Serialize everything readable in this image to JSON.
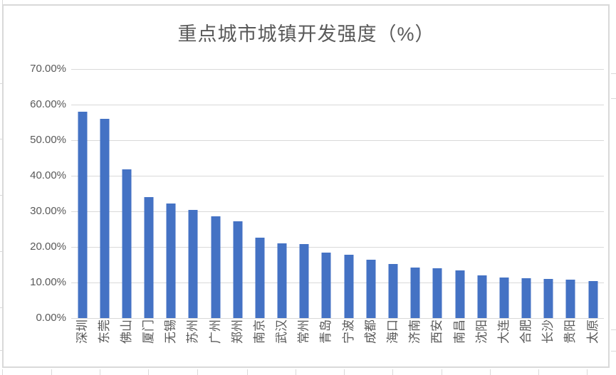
{
  "chart_data": {
    "type": "bar",
    "title": "重点城市城镇开发强度（%）",
    "categories": [
      "深圳",
      "东莞",
      "佛山",
      "厦门",
      "无锡",
      "苏州",
      "广州",
      "郑州",
      "南京",
      "武汉",
      "常州",
      "青岛",
      "宁波",
      "成都",
      "海口",
      "济南",
      "西安",
      "南昌",
      "沈阳",
      "大连",
      "合肥",
      "长沙",
      "贵阳",
      "太原"
    ],
    "values": [
      58.1,
      56.1,
      41.9,
      34.1,
      32.2,
      30.5,
      28.7,
      27.3,
      22.7,
      21.0,
      20.9,
      18.5,
      17.8,
      16.5,
      15.3,
      14.2,
      14.1,
      13.5,
      12.1,
      11.4,
      11.3,
      11.0,
      10.9,
      10.4
    ],
    "y_tick_labels": [
      "70.00%",
      "60.00%",
      "50.00%",
      "40.00%",
      "30.00%",
      "20.00%",
      "10.00%",
      "0.00%"
    ],
    "ylim": [
      0,
      70
    ],
    "xlabel": "",
    "ylabel": "",
    "grid": true,
    "legend": "none",
    "colors": {
      "bar": "#4472C4",
      "gridline": "#d9d9d9",
      "axis_text": "#595959",
      "title_text": "#595959",
      "chart_border": "#d9d9d9"
    }
  }
}
